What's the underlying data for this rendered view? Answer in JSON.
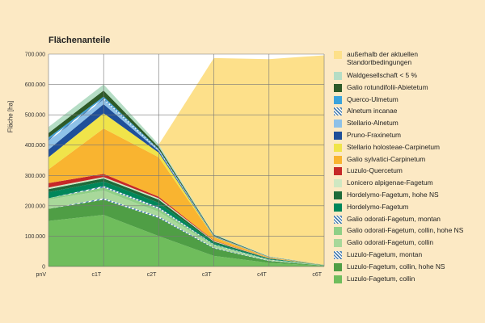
{
  "chart_data": {
    "type": "area",
    "stacked": true,
    "title": "Flächenanteile",
    "ylabel": "Fläche [ha]",
    "xlabel": "",
    "categories": [
      "pnV",
      "c1T",
      "c2T",
      "c3T",
      "c4T",
      "c6T"
    ],
    "yticks": [
      "0",
      "100.000",
      "200.000",
      "300.000",
      "400.000",
      "500.000",
      "600.000",
      "700.000"
    ],
    "ylim": [
      0,
      700000
    ],
    "grid": true,
    "legend_position": "right",
    "series": [
      {
        "name": "Luzulo-Fagetum, collin",
        "color": "#6fbd5c",
        "values": [
          150000,
          170000,
          100000,
          35000,
          12000,
          2000
        ]
      },
      {
        "name": "Luzulo-Fagetum, collin, hohe NS",
        "color": "#4f9e45",
        "values": [
          40000,
          50000,
          60000,
          25000,
          6000,
          1000
        ]
      },
      {
        "name": "Luzulo-Fagetum, montan",
        "color": "#9cd3c8",
        "values": [
          0,
          5000,
          5000,
          2000,
          1000,
          0
        ],
        "pattern": true
      },
      {
        "name": "Galio odorati-Fagetum, collin",
        "color": "#a8d89a",
        "values": [
          30000,
          25000,
          15000,
          6000,
          2000,
          500
        ]
      },
      {
        "name": "Galio odorati-Fagetum, collin, hohe NS",
        "color": "#8fcf86",
        "values": [
          5000,
          10000,
          10000,
          3000,
          1000,
          300
        ]
      },
      {
        "name": "Galio odorati-Fagetum, montan",
        "color": "#2f8f5a",
        "values": [
          0,
          5000,
          5000,
          2000,
          1000,
          0
        ],
        "pattern": true
      },
      {
        "name": "Hordelymo-Fagetum",
        "color": "#00875a",
        "values": [
          20000,
          15000,
          15000,
          5000,
          2000,
          500
        ]
      },
      {
        "name": "Hordelymo-Fagetum, hohe NS",
        "color": "#1e6b3a",
        "values": [
          10000,
          10000,
          10000,
          4000,
          1500,
          300
        ]
      },
      {
        "name": "Lonicero alpigenae-Fagetum",
        "color": "#cfe8c2",
        "values": [
          5000,
          5000,
          5000,
          2000,
          500,
          100
        ]
      },
      {
        "name": "Luzulo-Quercetum",
        "color": "#c62828",
        "values": [
          15000,
          10000,
          5000,
          2000,
          500,
          100
        ]
      },
      {
        "name": "Galio sylvatici-Carpinetum",
        "color": "#f9b430",
        "values": [
          45000,
          150000,
          130000,
          10000,
          2000,
          300
        ]
      },
      {
        "name": "Stellario holosteae-Carpinetum",
        "color": "#f0e44a",
        "values": [
          40000,
          50000,
          15000,
          2000,
          500,
          100
        ]
      },
      {
        "name": "Pruno-Fraxinetum",
        "color": "#1f4f99",
        "values": [
          25000,
          30000,
          5000,
          1000,
          300,
          100
        ]
      },
      {
        "name": "Stellario-Alnetum",
        "color": "#8ec1e8",
        "values": [
          30000,
          15000,
          3000,
          1000,
          300,
          100
        ]
      },
      {
        "name": "Alnetum incanae",
        "color": "#d7ebf8",
        "values": [
          5000,
          5000,
          2000,
          500,
          200,
          0
        ],
        "pattern": true
      },
      {
        "name": "Querco-Ulmetum",
        "color": "#3ba3dc",
        "values": [
          5000,
          5000,
          2000,
          500,
          200,
          0
        ]
      },
      {
        "name": "Galio rotundifolii-Abietetum",
        "color": "#2d5a28",
        "values": [
          15000,
          20000,
          7000,
          3000,
          1000,
          200
        ]
      },
      {
        "name": "Waldgesellschaft < 5 %",
        "color": "#b5ddc5",
        "values": [
          20000,
          20000,
          8000,
          3000,
          1500,
          300
        ]
      },
      {
        "name": "außerhalb der aktuellen Standortbedingungen",
        "color": "#fde08a",
        "values": [
          0,
          0,
          0,
          580000,
          650000,
          690000
        ]
      }
    ],
    "legend_order": [
      "außerhalb der aktuellen Standortbedingungen",
      "Waldgesellschaft < 5 %",
      "Galio rotundifolii-Abietetum",
      "Querco-Ulmetum",
      "Alnetum incanae",
      "Stellario-Alnetum",
      "Pruno-Fraxinetum",
      "Stellario holosteae-Carpinetum",
      "Galio sylvatici-Carpinetum",
      "Luzulo-Quercetum",
      "Lonicero alpigenae-Fagetum",
      "Hordelymo-Fagetum, hohe NS",
      "Hordelymo-Fagetum",
      "Galio odorati-Fagetum, montan",
      "Galio odorati-Fagetum, collin, hohe NS",
      "Galio odorati-Fagetum, collin",
      "Luzulo-Fagetum, montan",
      "Luzulo-Fagetum, collin, hohe NS",
      "Luzulo-Fagetum, collin"
    ]
  }
}
